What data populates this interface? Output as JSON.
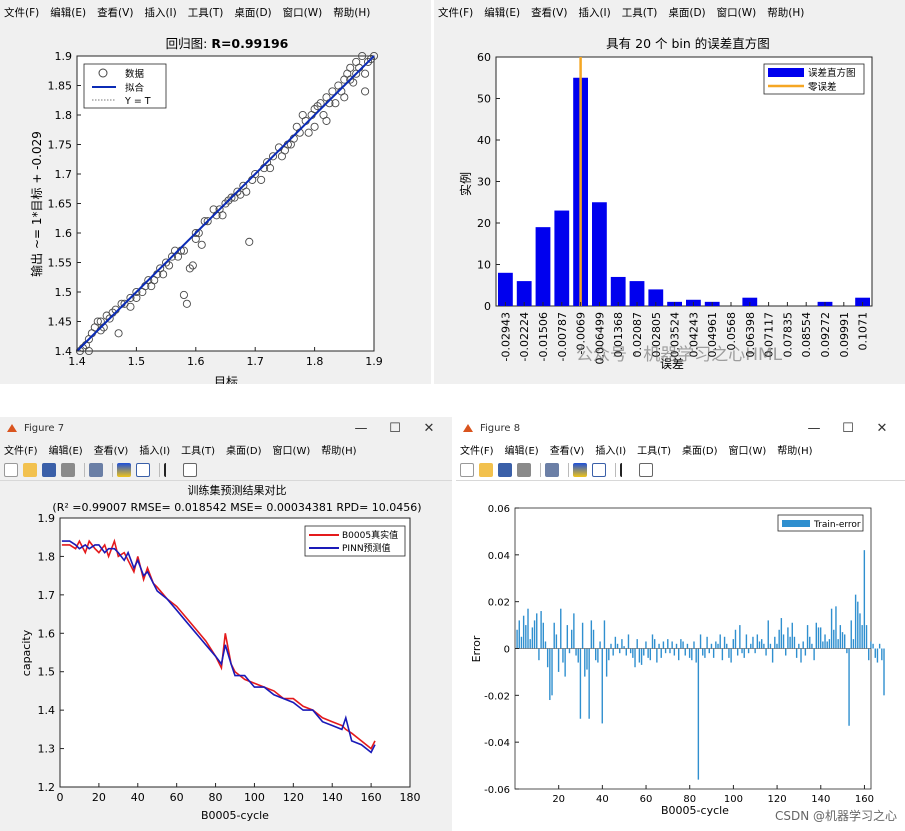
{
  "menu_items": [
    "文件(F)",
    "编辑(E)",
    "查看(V)",
    "插入(I)",
    "工具(T)",
    "桌面(D)",
    "窗口(W)",
    "帮助(H)"
  ],
  "windows": {
    "fig7_title": "Figure 7",
    "fig8_title": "Figure 8",
    "minimize": "—",
    "maximize": "☐",
    "close": "✕"
  },
  "colors": {
    "measured": "#e41a1c",
    "predicted": "#1a1ab8",
    "fit": "#0b2bb5",
    "hist_bar": "#0000ee",
    "zero_error": "#f5a623",
    "error_bar": "#2f8fcf",
    "window_bg": "#f0f0f0"
  },
  "watermarks": {
    "center": "公众号 · 机器学习之心HML",
    "bottom": "CSDN @机器学习之心"
  },
  "chart_data": [
    {
      "id": "regression",
      "type": "scatter",
      "title_prefix": "回归图: ",
      "title_value": "R=0.99196",
      "xlabel": "目标",
      "ylabel": "输出 ~= 1*目标 + -0.029",
      "xlim": [
        1.4,
        1.9
      ],
      "ylim": [
        1.4,
        1.9
      ],
      "xticks": [
        "1.4",
        "1.5",
        "1.6",
        "1.7",
        "1.8",
        "1.9"
      ],
      "yticks": [
        "1.4",
        "1.45",
        "1.5",
        "1.55",
        "1.6",
        "1.65",
        "1.7",
        "1.75",
        "1.8",
        "1.85",
        "1.9"
      ],
      "legend": [
        "数据",
        "拟合",
        "Y = T"
      ],
      "legend_position": "top-left",
      "fit": {
        "slope": 1,
        "intercept": -0.029
      },
      "points": [
        [
          1.405,
          1.4
        ],
        [
          1.41,
          1.405
        ],
        [
          1.415,
          1.41
        ],
        [
          1.42,
          1.4
        ],
        [
          1.42,
          1.42
        ],
        [
          1.425,
          1.43
        ],
        [
          1.43,
          1.44
        ],
        [
          1.435,
          1.45
        ],
        [
          1.44,
          1.45
        ],
        [
          1.44,
          1.435
        ],
        [
          1.445,
          1.44
        ],
        [
          1.45,
          1.46
        ],
        [
          1.455,
          1.455
        ],
        [
          1.46,
          1.465
        ],
        [
          1.465,
          1.47
        ],
        [
          1.47,
          1.43
        ],
        [
          1.475,
          1.48
        ],
        [
          1.48,
          1.48
        ],
        [
          1.49,
          1.49
        ],
        [
          1.49,
          1.475
        ],
        [
          1.5,
          1.5
        ],
        [
          1.5,
          1.49
        ],
        [
          1.51,
          1.5
        ],
        [
          1.515,
          1.51
        ],
        [
          1.52,
          1.52
        ],
        [
          1.525,
          1.51
        ],
        [
          1.53,
          1.52
        ],
        [
          1.535,
          1.53
        ],
        [
          1.54,
          1.54
        ],
        [
          1.545,
          1.53
        ],
        [
          1.55,
          1.55
        ],
        [
          1.555,
          1.545
        ],
        [
          1.56,
          1.56
        ],
        [
          1.565,
          1.57
        ],
        [
          1.57,
          1.56
        ],
        [
          1.575,
          1.57
        ],
        [
          1.58,
          1.57
        ],
        [
          1.58,
          1.495
        ],
        [
          1.585,
          1.48
        ],
        [
          1.59,
          1.54
        ],
        [
          1.595,
          1.545
        ],
        [
          1.6,
          1.6
        ],
        [
          1.6,
          1.59
        ],
        [
          1.605,
          1.6
        ],
        [
          1.61,
          1.58
        ],
        [
          1.615,
          1.62
        ],
        [
          1.62,
          1.62
        ],
        [
          1.63,
          1.64
        ],
        [
          1.635,
          1.63
        ],
        [
          1.64,
          1.64
        ],
        [
          1.645,
          1.63
        ],
        [
          1.65,
          1.65
        ],
        [
          1.655,
          1.655
        ],
        [
          1.66,
          1.66
        ],
        [
          1.665,
          1.66
        ],
        [
          1.67,
          1.67
        ],
        [
          1.675,
          1.665
        ],
        [
          1.68,
          1.68
        ],
        [
          1.685,
          1.67
        ],
        [
          1.69,
          1.585
        ],
        [
          1.695,
          1.69
        ],
        [
          1.7,
          1.7
        ],
        [
          1.71,
          1.69
        ],
        [
          1.715,
          1.71
        ],
        [
          1.72,
          1.72
        ],
        [
          1.725,
          1.71
        ],
        [
          1.73,
          1.73
        ],
        [
          1.74,
          1.745
        ],
        [
          1.745,
          1.73
        ],
        [
          1.75,
          1.74
        ],
        [
          1.755,
          1.75
        ],
        [
          1.76,
          1.75
        ],
        [
          1.765,
          1.76
        ],
        [
          1.77,
          1.78
        ],
        [
          1.775,
          1.77
        ],
        [
          1.78,
          1.8
        ],
        [
          1.785,
          1.79
        ],
        [
          1.79,
          1.77
        ],
        [
          1.795,
          1.8
        ],
        [
          1.8,
          1.78
        ],
        [
          1.8,
          1.81
        ],
        [
          1.805,
          1.815
        ],
        [
          1.81,
          1.82
        ],
        [
          1.815,
          1.8
        ],
        [
          1.82,
          1.83
        ],
        [
          1.82,
          1.79
        ],
        [
          1.825,
          1.82
        ],
        [
          1.83,
          1.84
        ],
        [
          1.835,
          1.82
        ],
        [
          1.84,
          1.85
        ],
        [
          1.845,
          1.84
        ],
        [
          1.85,
          1.86
        ],
        [
          1.85,
          1.83
        ],
        [
          1.855,
          1.87
        ],
        [
          1.86,
          1.86
        ],
        [
          1.86,
          1.88
        ],
        [
          1.865,
          1.855
        ],
        [
          1.87,
          1.89
        ],
        [
          1.87,
          1.87
        ],
        [
          1.875,
          1.88
        ],
        [
          1.88,
          1.9
        ],
        [
          1.885,
          1.87
        ],
        [
          1.885,
          1.84
        ],
        [
          1.89,
          1.89
        ],
        [
          1.895,
          1.895
        ],
        [
          1.9,
          1.9
        ]
      ]
    },
    {
      "id": "histogram",
      "type": "bar",
      "title": "具有 20 个 bin 的误差直方图",
      "xlabel": "误差",
      "ylabel": "实例",
      "ylim": [
        0,
        60
      ],
      "yticks": [
        "0",
        "10",
        "20",
        "30",
        "40",
        "50",
        "60"
      ],
      "categories": [
        "-0.02943",
        "-0.02224",
        "-0.01506",
        "-0.00787",
        "-0.0069",
        "0.006499",
        "0.01368",
        "0.02087",
        "0.02805",
        "0.03524",
        "0.04243",
        "0.04961",
        "0.0568",
        "0.06398",
        "0.07117",
        "0.07835",
        "0.08554",
        "0.09272",
        "0.09991",
        "0.1071"
      ],
      "values": [
        8,
        6,
        19,
        23,
        55,
        25,
        7,
        6,
        4,
        1,
        1.5,
        1,
        0,
        2,
        0,
        0,
        0,
        1,
        0,
        2
      ],
      "zero_error_bin": 4.5,
      "legend": [
        "误差直方图",
        "零误差"
      ],
      "legend_position": "top-right"
    },
    {
      "id": "training-comparison",
      "type": "line",
      "title": "训练集预测结果对比",
      "subtitle": "(R² =0.99007 RMSE= 0.018542 MSE= 0.00034381 RPD= 10.0456)",
      "xlabel": "B0005-cycle",
      "ylabel": "capacity",
      "xlim": [
        0,
        180
      ],
      "ylim": [
        1.2,
        1.9
      ],
      "xticks": [
        "0",
        "20",
        "40",
        "60",
        "80",
        "100",
        "120",
        "140",
        "160",
        "180"
      ],
      "yticks": [
        "1.2",
        "1.3",
        "1.4",
        "1.5",
        "1.6",
        "1.7",
        "1.8",
        "1.9"
      ],
      "legend_position": "top-right",
      "series": [
        {
          "name": "B0005真实值",
          "x": [
            1,
            5,
            8,
            10,
            13,
            15,
            18,
            20,
            23,
            25,
            28,
            30,
            33,
            35,
            38,
            40,
            43,
            45,
            48,
            50,
            55,
            60,
            65,
            70,
            75,
            80,
            83,
            85,
            88,
            90,
            95,
            100,
            105,
            110,
            115,
            120,
            125,
            130,
            135,
            140,
            145,
            147,
            150,
            155,
            160,
            162
          ],
          "y": [
            1.83,
            1.83,
            1.82,
            1.84,
            1.81,
            1.84,
            1.82,
            1.81,
            1.83,
            1.8,
            1.84,
            1.8,
            1.81,
            1.79,
            1.76,
            1.8,
            1.74,
            1.77,
            1.73,
            1.72,
            1.69,
            1.67,
            1.64,
            1.61,
            1.58,
            1.54,
            1.51,
            1.6,
            1.52,
            1.5,
            1.48,
            1.47,
            1.46,
            1.45,
            1.43,
            1.43,
            1.41,
            1.4,
            1.38,
            1.37,
            1.36,
            1.35,
            1.34,
            1.32,
            1.3,
            1.32
          ]
        },
        {
          "name": "PINN预测值",
          "x": [
            1,
            5,
            8,
            10,
            13,
            15,
            18,
            20,
            23,
            25,
            28,
            30,
            33,
            35,
            38,
            40,
            43,
            45,
            48,
            50,
            55,
            60,
            65,
            70,
            75,
            80,
            83,
            85,
            88,
            90,
            95,
            100,
            105,
            110,
            115,
            120,
            125,
            130,
            135,
            140,
            145,
            147,
            150,
            155,
            160,
            162
          ],
          "y": [
            1.84,
            1.84,
            1.83,
            1.82,
            1.83,
            1.82,
            1.83,
            1.83,
            1.81,
            1.82,
            1.82,
            1.81,
            1.79,
            1.81,
            1.77,
            1.79,
            1.75,
            1.76,
            1.73,
            1.71,
            1.69,
            1.66,
            1.63,
            1.6,
            1.57,
            1.54,
            1.52,
            1.57,
            1.52,
            1.49,
            1.49,
            1.46,
            1.46,
            1.44,
            1.43,
            1.42,
            1.4,
            1.4,
            1.37,
            1.36,
            1.35,
            1.38,
            1.32,
            1.31,
            1.29,
            1.31
          ]
        }
      ]
    },
    {
      "id": "train-error",
      "type": "bar",
      "xlabel": "B0005-cycle",
      "ylabel": "Error",
      "xlim": [
        0,
        163
      ],
      "ylim": [
        -0.06,
        0.06
      ],
      "xticks": [
        "20",
        "40",
        "60",
        "80",
        "100",
        "120",
        "140",
        "160"
      ],
      "yticks": [
        "-0.06",
        "-0.04",
        "-0.02",
        "0",
        "0.02",
        "0.04",
        "0.06"
      ],
      "legend": [
        "Train-error"
      ],
      "legend_position": "top-right",
      "values": [
        0.008,
        0.012,
        0.005,
        0.014,
        0.01,
        0.017,
        0.004,
        0.009,
        0.012,
        0.015,
        -0.005,
        0.016,
        0.011,
        0.003,
        -0.008,
        -0.022,
        -0.02,
        0.011,
        0.006,
        -0.01,
        0.017,
        -0.006,
        -0.012,
        0.01,
        -0.002,
        0.008,
        0.015,
        -0.003,
        -0.006,
        -0.03,
        0.011,
        -0.012,
        -0.009,
        -0.03,
        0.012,
        0.008,
        -0.005,
        -0.006,
        0.003,
        -0.032,
        0.012,
        -0.012,
        -0.005,
        0.002,
        -0.003,
        0.005,
        0.002,
        -0.002,
        0.004,
        0.001,
        -0.003,
        0.006,
        -0.002,
        -0.004,
        -0.008,
        0.004,
        -0.006,
        -0.007,
        -0.003,
        0.003,
        -0.004,
        -0.005,
        0.006,
        0.004,
        -0.006,
        0.002,
        -0.004,
        0.003,
        -0.002,
        0.004,
        -0.002,
        0.003,
        -0.003,
        0.002,
        -0.005,
        0.004,
        0.003,
        -0.003,
        0.002,
        -0.004,
        -0.005,
        0.003,
        -0.006,
        -0.056,
        0.006,
        -0.003,
        -0.004,
        0.005,
        -0.002,
        0.002,
        -0.004,
        0.003,
        0.002,
        0.006,
        -0.005,
        0.005,
        0.002,
        -0.004,
        -0.006,
        0.004,
        0.008,
        -0.003,
        0.01,
        -0.002,
        -0.004,
        0.006,
        -0.002,
        0.002,
        0.005,
        -0.002,
        0.006,
        0.003,
        0.004,
        0.002,
        -0.003,
        0.012,
        0.002,
        -0.006,
        0.005,
        0.002,
        0.008,
        0.013,
        0.006,
        -0.003,
        0.009,
        0.005,
        0.011,
        0.005,
        -0.004,
        0.002,
        -0.006,
        0.003,
        -0.003,
        0.01,
        0.005,
        0.002,
        -0.005,
        0.011,
        0.009,
        0.009,
        0.003,
        0.006,
        0.003,
        0.004,
        0.017,
        0.008,
        0.018,
        0.004,
        0.01,
        0.007,
        0.006,
        -0.002,
        -0.033,
        0.012,
        0.004,
        0.023,
        0.02,
        0.015,
        0.01,
        0.042,
        0.01,
        -0.005,
        0.003,
        0.002,
        -0.004,
        -0.006,
        0.002,
        -0.005,
        -0.02
      ]
    }
  ]
}
